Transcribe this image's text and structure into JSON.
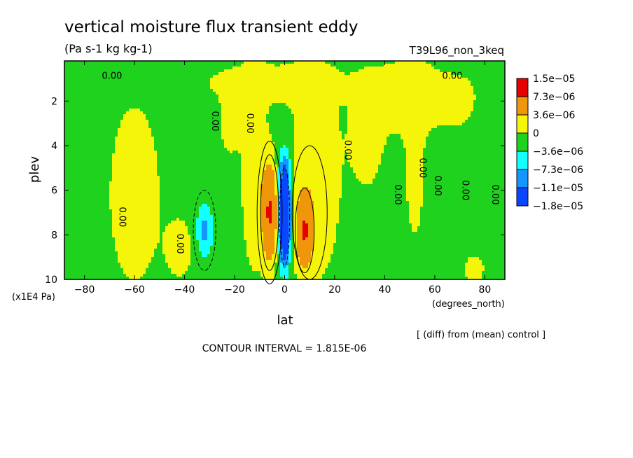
{
  "chart_data": {
    "type": "heatmap",
    "title": "vertical moisture flux transient eddy",
    "units": "(Pa s-1 kg kg-1)",
    "run_label": "T39L96_non_3keq",
    "xlabel": "lat",
    "x_units": "(degrees_north)",
    "ylabel": "plev",
    "y_units": "(x1E4 Pa)",
    "xlim": [
      -88,
      88
    ],
    "ylim": [
      10,
      0.2
    ],
    "y_inverted": true,
    "x_ticks": [
      -80,
      -60,
      -40,
      -20,
      0,
      20,
      40,
      60,
      80
    ],
    "x_tick_labels": [
      "−80",
      "−60",
      "−40",
      "−20",
      "0",
      "20",
      "40",
      "60",
      "80"
    ],
    "y_ticks": [
      2,
      4,
      6,
      8,
      10
    ],
    "y_tick_labels": [
      "2",
      "4",
      "6",
      "8",
      "10"
    ],
    "contour_label": "0.00",
    "contour_interval_text": "CONTOUR INTERVAL = 1.815E-06",
    "comparison_note": "[ (diff) from (mean) control ]",
    "legend": {
      "placement": "right",
      "colors": [
        "#e60000",
        "#f0960a",
        "#f5f50a",
        "#1ed21e",
        "#14ffff",
        "#1496ff",
        "#0a46ff"
      ],
      "labels": [
        "1.5e−05",
        "7.3e−06",
        "3.6e−06",
        "0",
        "−3.6e−06",
        "−7.3e−06",
        "−1.1e−05",
        "−1.8e−05"
      ]
    },
    "levels": [
      -1.8e-05,
      -1.1e-05,
      -7.3e-06,
      -3.6e-06,
      0,
      3.6e-06,
      7.3e-06,
      1.5e-05
    ],
    "features": [
      {
        "name": "equatorial positive lobe south",
        "lat": -6,
        "plev": 7.0,
        "value": 1.5e-05
      },
      {
        "name": "equatorial negative core",
        "lat": 0,
        "plev": 7.2,
        "value": -1.8e-05
      },
      {
        "name": "equatorial positive lobe north",
        "lat": 8,
        "plev": 7.8,
        "value": 1.5e-05
      },
      {
        "name": "southern subtropical negative",
        "lat": -32,
        "plev": 7.8,
        "value": -7.3e-06
      }
    ]
  }
}
